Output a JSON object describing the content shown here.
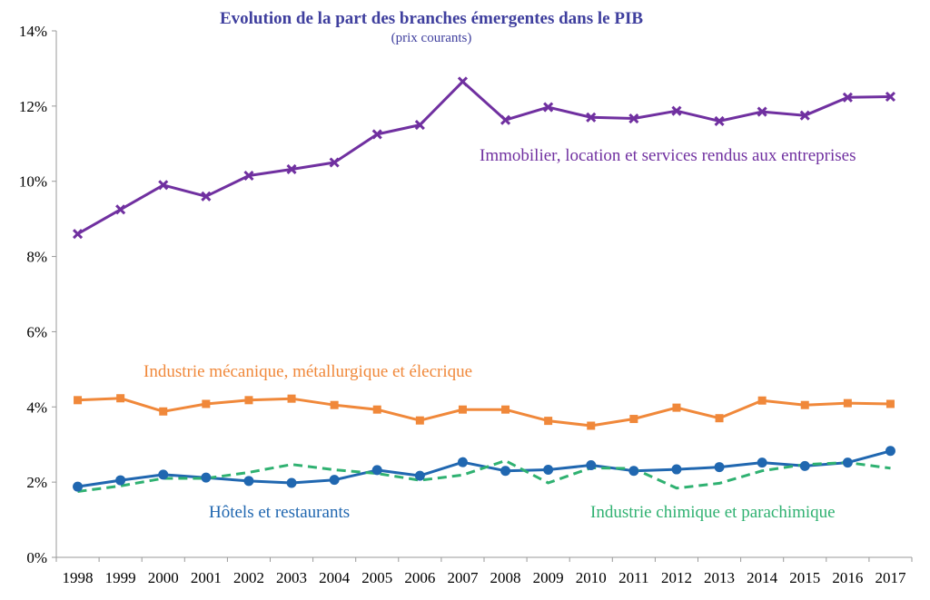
{
  "chart_data": {
    "type": "line",
    "title": "Evolution de la part des branches émergentes dans le PIB",
    "subtitle": "(prix courants)",
    "xlabel": "",
    "ylabel": "",
    "ylim": [
      0,
      14
    ],
    "yticks": [
      "0%",
      "2%",
      "4%",
      "6%",
      "8%",
      "10%",
      "12%",
      "14%"
    ],
    "ytick_values": [
      0,
      2,
      4,
      6,
      8,
      10,
      12,
      14
    ],
    "grid": false,
    "categories": [
      "1998",
      "1999",
      "2000",
      "2001",
      "2002",
      "2003",
      "2004",
      "2005",
      "2006",
      "2007",
      "2008",
      "2009",
      "2010",
      "2011",
      "2012",
      "2013",
      "2014",
      "2015",
      "2016",
      "2017"
    ],
    "series": [
      {
        "name": "Immobilier, location et services rendus aux entreprises",
        "color": "#7030a0",
        "marker": "x",
        "dash": false,
        "values": [
          8.6,
          9.25,
          9.9,
          9.6,
          10.15,
          10.32,
          10.5,
          11.25,
          11.5,
          12.65,
          11.63,
          11.97,
          11.7,
          11.67,
          11.87,
          11.6,
          11.85,
          11.75,
          12.23,
          12.25
        ]
      },
      {
        "name": "Industrie mécanique, métallurgique et élecrique",
        "color": "#f0883a",
        "marker": "square",
        "dash": false,
        "values": [
          4.18,
          4.23,
          3.88,
          4.08,
          4.18,
          4.22,
          4.05,
          3.93,
          3.64,
          3.93,
          3.93,
          3.63,
          3.5,
          3.68,
          3.98,
          3.7,
          4.17,
          4.05,
          4.1,
          4.08
        ]
      },
      {
        "name": "Hôtels et restaurants",
        "color": "#2067b0",
        "marker": "circle",
        "dash": false,
        "values": [
          1.88,
          2.05,
          2.2,
          2.12,
          2.03,
          1.98,
          2.06,
          2.32,
          2.17,
          2.53,
          2.3,
          2.33,
          2.45,
          2.3,
          2.34,
          2.4,
          2.52,
          2.43,
          2.52,
          2.83
        ]
      },
      {
        "name": "Industrie chimique et parachimique",
        "color": "#2fb171",
        "marker": "none",
        "dash": true,
        "values": [
          1.75,
          1.9,
          2.1,
          2.1,
          2.26,
          2.47,
          2.33,
          2.23,
          2.05,
          2.19,
          2.57,
          1.98,
          2.38,
          2.36,
          1.84,
          1.97,
          2.3,
          2.47,
          2.52,
          2.37
        ]
      }
    ]
  }
}
